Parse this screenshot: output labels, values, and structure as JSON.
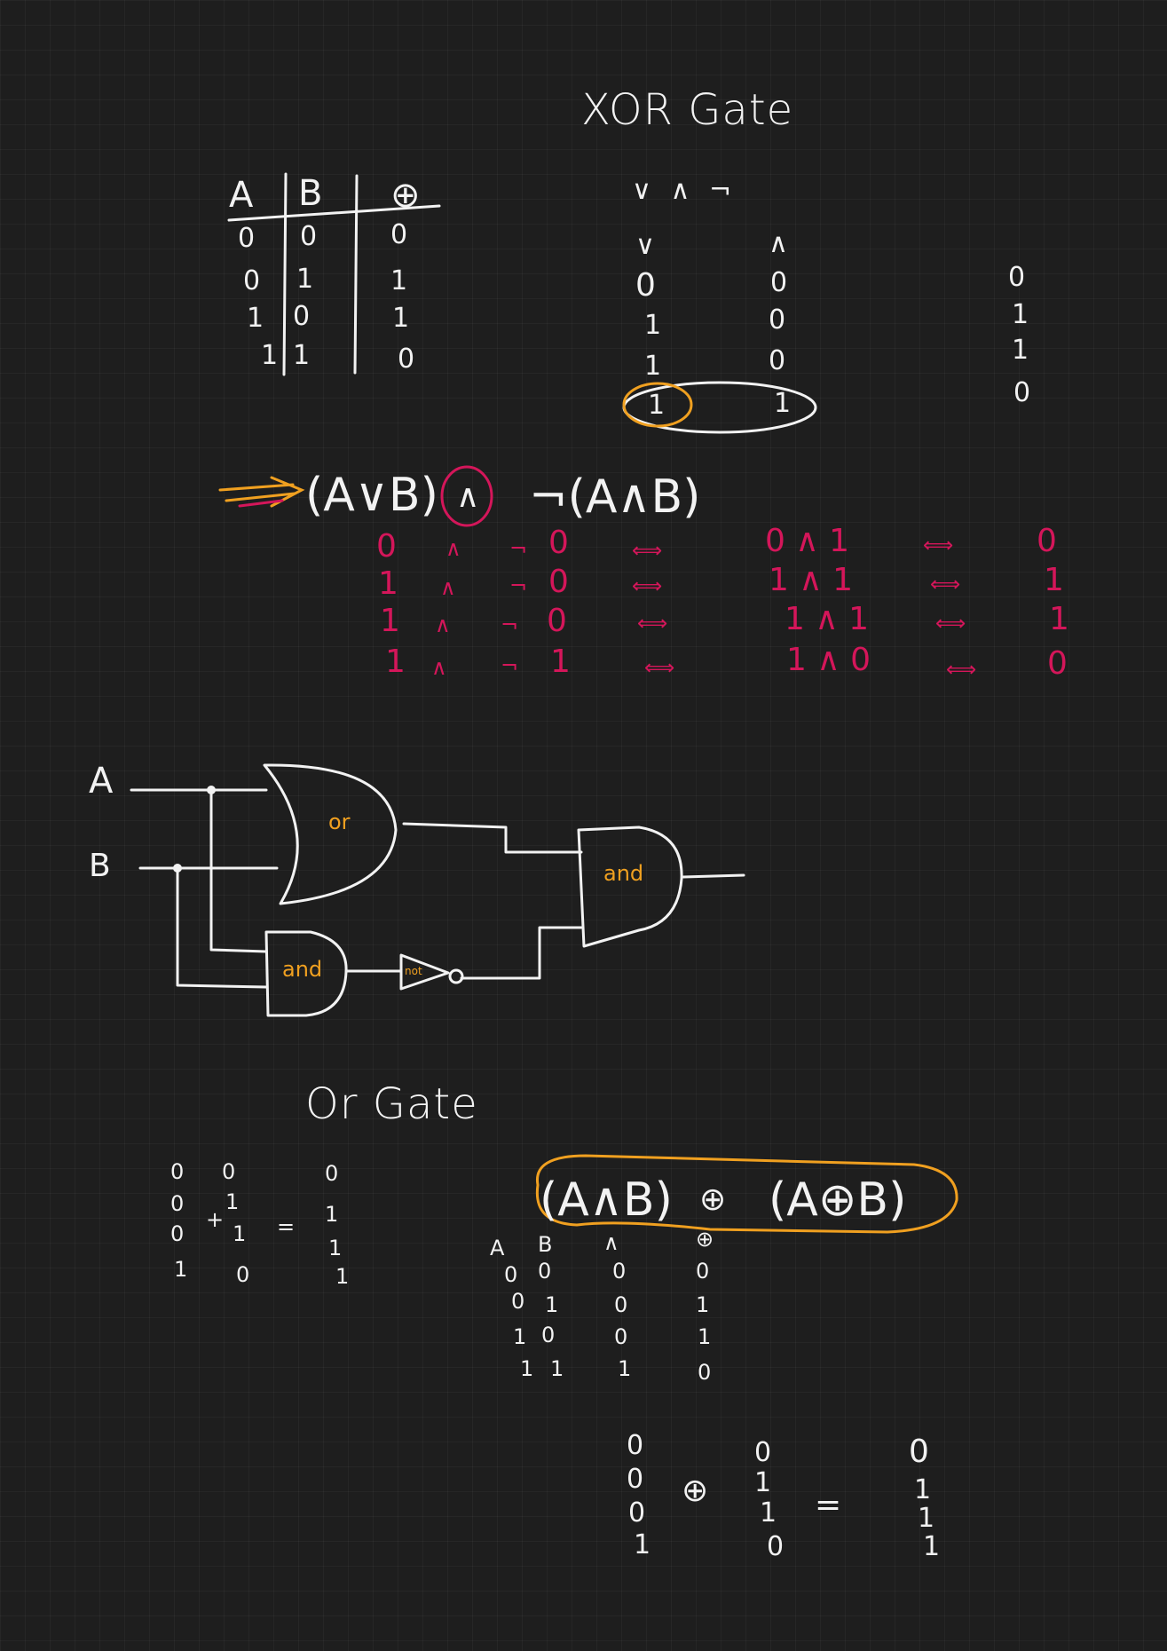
{
  "xor_title": "XOR Gate",
  "truth_table": {
    "headers": [
      "A",
      "B",
      "⊕"
    ],
    "rows": [
      [
        "0",
        "0",
        "0"
      ],
      [
        "0",
        "1",
        "1"
      ],
      [
        "1",
        "0",
        "1"
      ],
      [
        "1",
        "1",
        "0"
      ]
    ]
  },
  "ops_row": "∨  ∧  ¬",
  "or_column": {
    "symbol": "∨",
    "values": [
      "0",
      "1",
      "1",
      "1"
    ]
  },
  "and_column": {
    "symbol": "∧",
    "values": [
      "0",
      "0",
      "0",
      "1"
    ]
  },
  "result_column": [
    "0",
    "1",
    "1",
    "0"
  ],
  "main_expression": {
    "left": "(A∨B)",
    "and_op": "∧",
    "right": "¬(A∧B)"
  },
  "eval_rows": [
    {
      "a": "0",
      "op": "∧",
      "neg": "¬",
      "b": "0",
      "iff": "⟺",
      "expr": "0 ∧ 1",
      "iff2": "⟺",
      "res": "0"
    },
    {
      "a": "1",
      "op": "∧",
      "neg": "¬",
      "b": "0",
      "iff": "⟺",
      "expr": "1 ∧ 1",
      "iff2": "⟺",
      "res": "1"
    },
    {
      "a": "1",
      "op": "∧",
      "neg": "¬",
      "b": "0",
      "iff": "⟺",
      "expr": "1 ∧ 1",
      "iff2": "⟺",
      "res": "1"
    },
    {
      "a": "1",
      "op": "∧",
      "neg": "¬",
      "b": "1",
      "iff": "⟺",
      "expr": "1 ∧ 0",
      "iff2": "⟺",
      "res": "0"
    }
  ],
  "circuit": {
    "input_a": "A",
    "input_b": "B",
    "or_gate": "or",
    "and_gate_top": "and",
    "and_gate_bottom": "and",
    "not_gate": "not"
  },
  "or_title": "Or Gate",
  "or_table": {
    "col1": [
      "0",
      "0",
      "0",
      "1"
    ],
    "plus": "+",
    "col2": [
      "0",
      "1",
      "1",
      "0"
    ],
    "equals": "=",
    "result": [
      "0",
      "1",
      "1",
      "1"
    ]
  },
  "composite_expression": {
    "left": "(A∧B)",
    "op": "⊕",
    "right": "(A⊕B)"
  },
  "composite_table": {
    "headers": [
      "A",
      "B",
      "∧",
      "⊕"
    ],
    "rows": [
      [
        "0",
        "0",
        "0",
        "0"
      ],
      [
        "0",
        "1",
        "0",
        "1"
      ],
      [
        "1",
        "0",
        "0",
        "1"
      ],
      [
        "1",
        "1",
        "1",
        "0"
      ]
    ]
  },
  "bottom_calc": {
    "col1": [
      "0",
      "0",
      "0",
      "1"
    ],
    "op": "⊕",
    "col2": [
      "0",
      "1",
      "1",
      "0"
    ],
    "equals": "=",
    "result": [
      "0",
      "1",
      "1",
      "1"
    ]
  }
}
